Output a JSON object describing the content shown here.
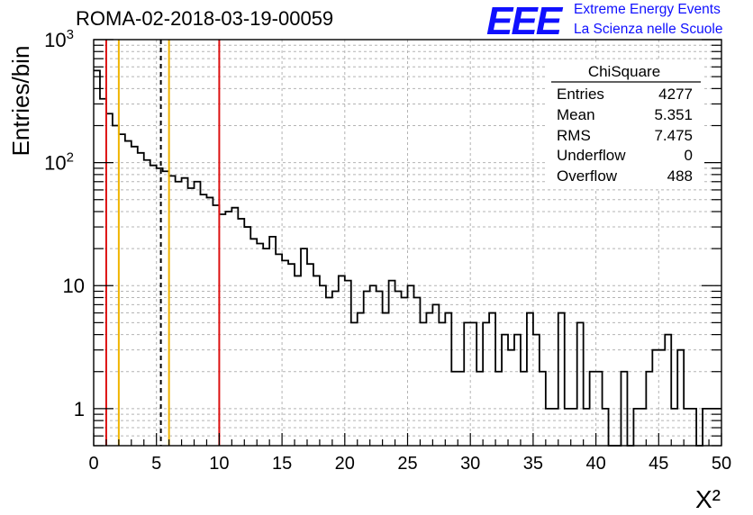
{
  "header": {
    "run_title": "ROMA-02-2018-03-19-00059",
    "logo_text": "EEE",
    "logo_line1": "Extreme Energy Events",
    "logo_line2": "La Scienza nelle Scuole"
  },
  "stats_box": {
    "name": "ChiSquare",
    "rows": [
      {
        "label": "Entries",
        "value": "4277"
      },
      {
        "label": "Mean",
        "value": "5.351"
      },
      {
        "label": "RMS",
        "value": "7.475"
      },
      {
        "label": "Underflow",
        "value": "0"
      },
      {
        "label": "Overflow",
        "value": "488"
      }
    ]
  },
  "chart_data": {
    "type": "histogram",
    "xlabel": "X²",
    "ylabel": "Entries/bin",
    "xlim": [
      0,
      50
    ],
    "ylim": [
      0.5,
      1000
    ],
    "y_scale": "log",
    "grid": true,
    "x_ticks": [
      "0",
      "5",
      "10",
      "15",
      "20",
      "25",
      "30",
      "35",
      "40",
      "45",
      "50"
    ],
    "y_ticks": [
      "1",
      "10",
      "10²",
      "10³"
    ],
    "bin_width": 0.5,
    "bin_values": [
      560,
      330,
      250,
      200,
      170,
      150,
      135,
      120,
      105,
      95,
      90,
      85,
      78,
      70,
      75,
      62,
      70,
      55,
      52,
      45,
      38,
      40,
      43,
      35,
      30,
      24,
      22,
      20,
      25,
      18,
      16,
      15,
      12,
      20,
      15,
      12,
      10,
      8,
      9,
      12,
      11,
      5,
      6,
      9,
      10,
      9,
      6,
      11,
      9,
      8,
      10,
      8,
      5,
      6,
      7,
      5,
      6,
      2,
      2,
      5,
      5,
      2,
      5,
      6,
      2,
      4,
      3,
      4,
      2,
      6,
      4,
      2,
      1,
      1,
      6,
      1,
      1,
      5,
      1,
      2,
      2,
      1,
      0,
      0,
      2,
      0,
      1,
      1,
      2,
      3,
      3,
      4,
      1,
      3,
      1,
      1,
      0,
      1,
      1,
      1
    ],
    "vertical_lines": [
      {
        "x": 1,
        "color": "#dd1111",
        "style": "solid"
      },
      {
        "x": 2,
        "color": "#f0b400",
        "style": "solid"
      },
      {
        "x": 5.351,
        "color": "#000000",
        "style": "dashed"
      },
      {
        "x": 6,
        "color": "#f0b400",
        "style": "solid"
      },
      {
        "x": 10,
        "color": "#dd1111",
        "style": "solid"
      }
    ]
  }
}
